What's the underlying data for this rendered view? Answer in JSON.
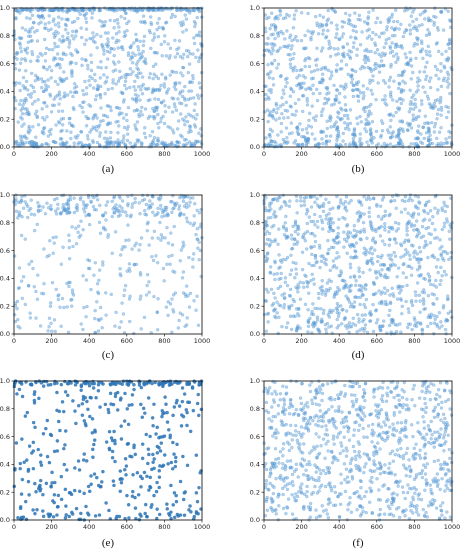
{
  "chart_data": [
    {
      "type": "scatter",
      "caption": "(a)",
      "xlim": [
        0,
        1000
      ],
      "ylim": [
        0,
        1.0
      ],
      "xticks": [
        "0",
        "200",
        "400",
        "600",
        "800",
        "1000"
      ],
      "yticks": [
        "0.0",
        "0.2",
        "0.4",
        "0.6",
        "0.8",
        "1.0"
      ],
      "marker_color": "#5b9bd5",
      "n_points": 1000,
      "distribution": "uniform with dense bands near y=0 and y=1"
    },
    {
      "type": "scatter",
      "caption": "(b)",
      "xlim": [
        0,
        1000
      ],
      "ylim": [
        0,
        1.0
      ],
      "xticks": [
        "0",
        "200",
        "400",
        "600",
        "800",
        "1000"
      ],
      "yticks": [
        "0.0",
        "0.2",
        "0.4",
        "0.6",
        "0.8",
        "1.0"
      ],
      "marker_color": "#5b9bd5",
      "n_points": 1000,
      "distribution": "uniform with vertical streaks near y=0"
    },
    {
      "type": "scatter",
      "caption": "(c)",
      "xlim": [
        0,
        1000
      ],
      "ylim": [
        0,
        1.0
      ],
      "xticks": [
        "0",
        "200",
        "400",
        "600",
        "800",
        "1000"
      ],
      "yticks": [
        "0.0",
        "0.2",
        "0.4",
        "0.6",
        "0.8",
        "1.0"
      ],
      "marker_color": "#5b9bd5",
      "n_points": 500,
      "distribution": "sparse, concentrated near y=1"
    },
    {
      "type": "scatter",
      "caption": "(d)",
      "xlim": [
        0,
        1000
      ],
      "ylim": [
        0,
        1.0
      ],
      "xticks": [
        "0",
        "200",
        "400",
        "600",
        "800",
        "1000"
      ],
      "yticks": [
        "0.0",
        "0.2",
        "0.4",
        "0.6",
        "0.8",
        "1.0"
      ],
      "marker_color": "#5b9bd5",
      "n_points": 1000,
      "distribution": "uniform"
    },
    {
      "type": "scatter",
      "caption": "(e)",
      "xlim": [
        0,
        1000
      ],
      "ylim": [
        0,
        1.0
      ],
      "xticks": [
        "0",
        "200",
        "400",
        "600",
        "800",
        "1000"
      ],
      "yticks": [
        "0.0",
        "0.2",
        "0.4",
        "0.6",
        "0.8",
        "1.0"
      ],
      "marker_color": "#2e75b6",
      "n_points": 450,
      "distribution": "dense band at y=1, sparse elsewhere"
    },
    {
      "type": "scatter",
      "caption": "(f)",
      "xlim": [
        0,
        1000
      ],
      "ylim": [
        0,
        1.0
      ],
      "xticks": [
        "0",
        "200",
        "400",
        "600",
        "800",
        "1000"
      ],
      "yticks": [
        "0.0",
        "0.2",
        "0.4",
        "0.6",
        "0.8",
        "1.0"
      ],
      "marker_color": "#5b9bd5",
      "n_points": 1000,
      "distribution": "uniform"
    }
  ]
}
